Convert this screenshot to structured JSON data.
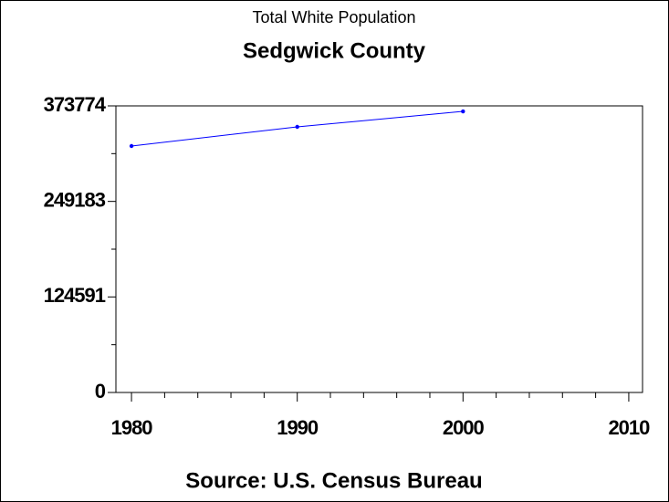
{
  "chart_data": {
    "type": "line",
    "title": "Total White Population",
    "subtitle": "Sedgwick County",
    "source": "Source: U.S. Census Bureau",
    "x": [
      1980,
      1990,
      2000
    ],
    "series": [
      {
        "color": "#0000ff",
        "values": [
          321400,
          346400,
          366600
        ]
      }
    ],
    "xlim": [
      1979.06,
      2010.83
    ],
    "xticks": [
      1980,
      1990,
      2000,
      2010
    ],
    "xminorticks": [
      1982,
      1984,
      1986,
      1988,
      1992,
      1994,
      1996,
      1998,
      2002,
      2004,
      2006,
      2008
    ],
    "ylim": [
      0,
      373774
    ],
    "yticks": [
      0,
      124591,
      249183,
      373774
    ],
    "yminorticks": [
      62296,
      186887,
      311479
    ],
    "grid": false
  }
}
